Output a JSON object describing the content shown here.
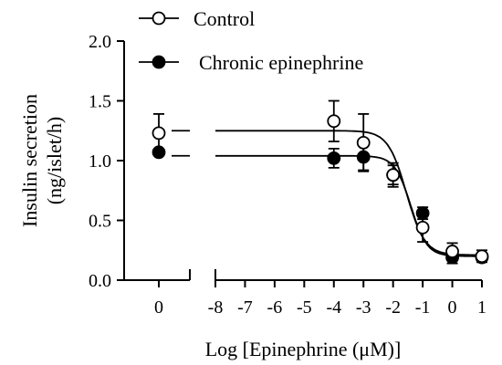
{
  "chart_data": {
    "type": "scatter",
    "title": "",
    "xlabel": "Log [Epinephrine (μM)]",
    "ylabel_lines": [
      "Insulin secretion",
      "(ng/islet/h)"
    ],
    "ylim": [
      0,
      2.0
    ],
    "y_ticks": [
      0.0,
      0.5,
      1.0,
      1.5,
      2.0
    ],
    "y_tick_labels": [
      "0.0",
      "0.5",
      "1.0",
      "1.5",
      "2.0"
    ],
    "x_baseline_tick_label": "0",
    "x_main_range": [
      -8,
      1
    ],
    "x_main_ticks": [
      -8,
      -7,
      -6,
      -5,
      -4,
      -3,
      -2,
      -1,
      0,
      1
    ],
    "x_main_tick_labels": [
      "-8",
      "-7",
      "-6",
      "-5",
      "-4",
      "-3",
      "-2",
      "-1",
      "0",
      "1"
    ],
    "axis_break": true,
    "legend_position": "top",
    "series": [
      {
        "name": "Control",
        "marker": "open-circle",
        "baseline": {
          "y": 1.23,
          "err": 0.16
        },
        "points": [
          {
            "x": -4,
            "y": 1.33,
            "err": 0.17
          },
          {
            "x": -3,
            "y": 1.15,
            "err": 0.24
          },
          {
            "x": -2,
            "y": 0.88,
            "err": 0.08
          },
          {
            "x": -1,
            "y": 0.44,
            "err": 0.12
          },
          {
            "x": 0,
            "y": 0.24,
            "err": 0.07
          },
          {
            "x": 1,
            "y": 0.2,
            "err": 0.05
          }
        ],
        "fit": {
          "top": 1.25,
          "bottom": 0.21,
          "logEC50": -1.55,
          "hill": 1.4
        }
      },
      {
        "name": "Chronic epinephrine",
        "marker": "filled-circle",
        "baseline": {
          "y": 1.07,
          "err": 0.0
        },
        "points": [
          {
            "x": -4,
            "y": 1.02,
            "err": 0.08
          },
          {
            "x": -3,
            "y": 1.03,
            "err": 0.11
          },
          {
            "x": -2,
            "y": 0.88,
            "err": 0.1
          },
          {
            "x": -1,
            "y": 0.56,
            "err": 0.05
          },
          {
            "x": 0,
            "y": 0.19,
            "err": 0.05
          },
          {
            "x": 1,
            "y": 0.19,
            "err": 0.0
          }
        ],
        "fit": {
          "top": 1.04,
          "bottom": 0.2,
          "logEC50": -1.4,
          "hill": 1.6
        }
      }
    ],
    "colors": {
      "line": "#000000",
      "open_fill": "#ffffff",
      "filled_fill": "#000000"
    }
  }
}
